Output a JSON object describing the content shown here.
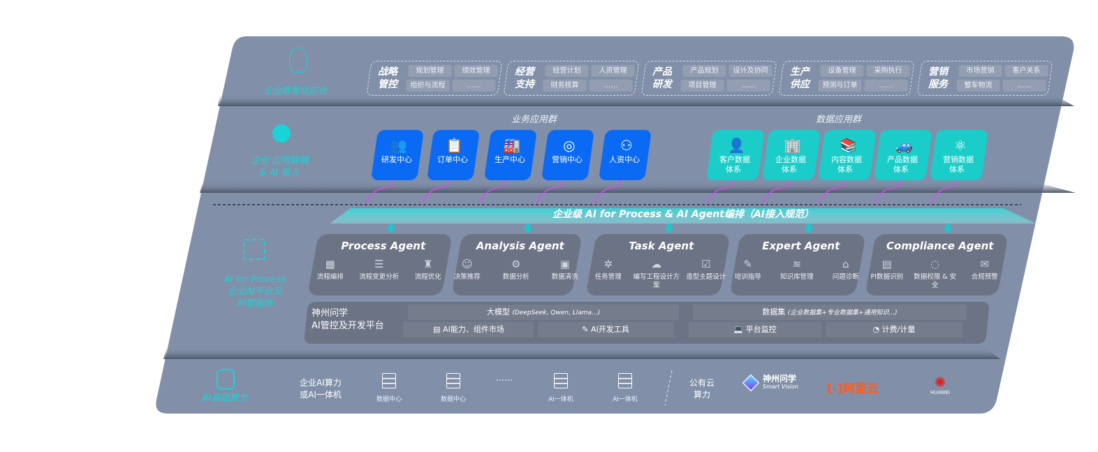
{
  "colors": {
    "panel": "#8190a8",
    "card": "#6c7384",
    "accent_cyan": "#19d3d8",
    "business_blue": "#0a6af3",
    "data_teal": "#1acdc9",
    "connector_magenta": "#d74cf0",
    "aliyun": "#ff5a1f",
    "huawei": "#e02020"
  },
  "front": {
    "label": "企业数智化前台",
    "icon": "brain-icon",
    "groups": [
      {
        "title": [
          "战略",
          "管控"
        ],
        "items": [
          "规划管理",
          "绩效管理",
          "组织与流程",
          "……"
        ]
      },
      {
        "title": [
          "经营",
          "支持"
        ],
        "items": [
          "经营计划",
          "人资管理",
          "财务核算",
          "……"
        ]
      },
      {
        "title": [
          "产品",
          "研发"
        ],
        "items": [
          "产品规划",
          "设计及协同",
          "项目管理",
          "……"
        ]
      },
      {
        "title": [
          "生产",
          "供应"
        ],
        "items": [
          "设备管理",
          "采购执行",
          "预测与订单",
          "……"
        ]
      },
      {
        "title": [
          "营销",
          "服务"
        ],
        "items": [
          "市场营销",
          "客户关系",
          "整车物流",
          "……"
        ]
      }
    ]
  },
  "apps": {
    "label": [
      "企业 应用解耦",
      "& AI 接入"
    ],
    "icon": "network-node-icon",
    "business": {
      "title": "业务应用群",
      "items": [
        {
          "label": "研发中心",
          "icon": "people-icon"
        },
        {
          "label": "订单中心",
          "icon": "clipboard-icon"
        },
        {
          "label": "生产中心",
          "icon": "factory-icon"
        },
        {
          "label": "营销中心",
          "icon": "target-icon"
        },
        {
          "label": "人资中心",
          "icon": "person-icon"
        }
      ]
    },
    "data": {
      "title": "数据应用群",
      "items": [
        {
          "label": [
            "客户数据",
            "体系"
          ],
          "icon": "user-icon"
        },
        {
          "label": [
            "企业数据",
            "体系"
          ],
          "icon": "building-icon"
        },
        {
          "label": [
            "内容数据",
            "体系"
          ],
          "icon": "books-icon"
        },
        {
          "label": [
            "产品数据",
            "体系"
          ],
          "icon": "car-icon"
        },
        {
          "label": [
            "营销数据",
            "体系"
          ],
          "icon": "atom-icon"
        }
      ]
    }
  },
  "banner": "企业级 AI for Process & AI Agent编排（AI接入规范）",
  "ai": {
    "label": [
      "AI for Process",
      "企业AI平台及",
      "AI智能体"
    ],
    "icon": "face-scan-icon",
    "agents": [
      {
        "name": "Process Agent",
        "tools": [
          "流程编排",
          "流程变更分析",
          "流程优化"
        ]
      },
      {
        "name": "Analysis Agent",
        "tools": [
          "决策推荐",
          "数据分析",
          "数据清洗"
        ]
      },
      {
        "name": "Task Agent",
        "tools": [
          "任务管理",
          "编写工程设计方案",
          "造型主题设计"
        ]
      },
      {
        "name": "Expert Agent",
        "tools": [
          "培训指导",
          "知识库管理",
          "问题诊断"
        ]
      },
      {
        "name": "Compliance Agent",
        "tools": [
          "PI数据识别",
          "数据权限 & 安全",
          "合规预警"
        ]
      }
    ],
    "platform": {
      "title": [
        "神州问学",
        "AI管控及开发平台"
      ],
      "model": "大模型",
      "model_note": "(DeepSeek, Qwen, Llama...)",
      "dataset": "数据集",
      "dataset_note": "(企业数据集+专业数据集+通用知识...)",
      "tools": [
        "AI能力、组件市场",
        "AI开发工具",
        "平台监控",
        "计费/计量"
      ]
    }
  },
  "infra": {
    "label": "AI基础算力",
    "icon": "database-icon",
    "enterprise": [
      "企业AI算力",
      "或AI一体机"
    ],
    "items": [
      "数据中心",
      "数据中心",
      "AI一体机",
      "AI一体机"
    ],
    "ellipsis": "……",
    "public": [
      "公有云",
      "算力"
    ],
    "vendors": {
      "smartvision": "神州问学",
      "smartvision_en": "Smart Vision",
      "aliyun": "阿里云",
      "huawei": "HUAWEI"
    }
  }
}
